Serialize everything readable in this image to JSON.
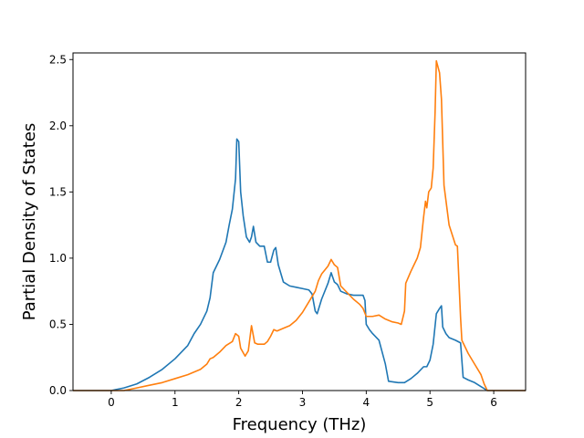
{
  "chart_data": {
    "type": "line",
    "xlabel": "Frequency (THz)",
    "ylabel": "Partial Density of States",
    "xlim": [
      -0.6,
      6.5
    ],
    "ylim": [
      0.0,
      2.55
    ],
    "x_ticks": [
      0,
      1,
      2,
      3,
      4,
      5,
      6
    ],
    "y_ticks": [
      0.0,
      0.5,
      1.0,
      1.5,
      2.0,
      2.5
    ],
    "x_tick_labels": [
      "0",
      "1",
      "2",
      "3",
      "4",
      "5",
      "6"
    ],
    "y_tick_labels": [
      "0.0",
      "0.5",
      "1.0",
      "1.5",
      "2.0",
      "2.5"
    ],
    "grid": false,
    "series": [
      {
        "color": "#1f77b4",
        "points": [
          [
            -0.6,
            0.0
          ],
          [
            0.0,
            0.0
          ],
          [
            0.2,
            0.02
          ],
          [
            0.4,
            0.05
          ],
          [
            0.6,
            0.1
          ],
          [
            0.8,
            0.16
          ],
          [
            1.0,
            0.24
          ],
          [
            1.2,
            0.34
          ],
          [
            1.3,
            0.43
          ],
          [
            1.4,
            0.5
          ],
          [
            1.5,
            0.6
          ],
          [
            1.55,
            0.7
          ],
          [
            1.6,
            0.89
          ],
          [
            1.7,
            0.99
          ],
          [
            1.8,
            1.12
          ],
          [
            1.85,
            1.25
          ],
          [
            1.9,
            1.37
          ],
          [
            1.95,
            1.6
          ],
          [
            1.97,
            1.9
          ],
          [
            2.0,
            1.88
          ],
          [
            2.03,
            1.5
          ],
          [
            2.07,
            1.32
          ],
          [
            2.12,
            1.16
          ],
          [
            2.17,
            1.12
          ],
          [
            2.2,
            1.16
          ],
          [
            2.23,
            1.24
          ],
          [
            2.27,
            1.12
          ],
          [
            2.33,
            1.09
          ],
          [
            2.4,
            1.09
          ],
          [
            2.45,
            0.97
          ],
          [
            2.5,
            0.97
          ],
          [
            2.55,
            1.06
          ],
          [
            2.58,
            1.08
          ],
          [
            2.62,
            0.95
          ],
          [
            2.7,
            0.82
          ],
          [
            2.8,
            0.79
          ],
          [
            2.9,
            0.78
          ],
          [
            3.0,
            0.77
          ],
          [
            3.1,
            0.76
          ],
          [
            3.15,
            0.73
          ],
          [
            3.2,
            0.6
          ],
          [
            3.23,
            0.58
          ],
          [
            3.3,
            0.69
          ],
          [
            3.4,
            0.81
          ],
          [
            3.45,
            0.89
          ],
          [
            3.5,
            0.82
          ],
          [
            3.55,
            0.8
          ],
          [
            3.6,
            0.75
          ],
          [
            3.7,
            0.73
          ],
          [
            3.8,
            0.72
          ],
          [
            3.9,
            0.72
          ],
          [
            3.95,
            0.72
          ],
          [
            3.98,
            0.68
          ],
          [
            4.0,
            0.5
          ],
          [
            4.05,
            0.46
          ],
          [
            4.1,
            0.43
          ],
          [
            4.2,
            0.38
          ],
          [
            4.3,
            0.2
          ],
          [
            4.35,
            0.07
          ],
          [
            4.5,
            0.06
          ],
          [
            4.6,
            0.06
          ],
          [
            4.7,
            0.09
          ],
          [
            4.8,
            0.13
          ],
          [
            4.9,
            0.18
          ],
          [
            4.95,
            0.18
          ],
          [
            5.0,
            0.23
          ],
          [
            5.05,
            0.35
          ],
          [
            5.1,
            0.58
          ],
          [
            5.15,
            0.62
          ],
          [
            5.18,
            0.64
          ],
          [
            5.2,
            0.48
          ],
          [
            5.25,
            0.43
          ],
          [
            5.3,
            0.4
          ],
          [
            5.4,
            0.38
          ],
          [
            5.48,
            0.36
          ],
          [
            5.52,
            0.1
          ],
          [
            5.6,
            0.08
          ],
          [
            5.7,
            0.06
          ],
          [
            5.8,
            0.03
          ],
          [
            5.9,
            0.0
          ],
          [
            6.5,
            0.0
          ]
        ]
      },
      {
        "color": "#ff7f0e",
        "points": [
          [
            -0.6,
            0.0
          ],
          [
            0.2,
            0.0
          ],
          [
            0.4,
            0.02
          ],
          [
            0.6,
            0.04
          ],
          [
            0.8,
            0.06
          ],
          [
            1.0,
            0.09
          ],
          [
            1.2,
            0.12
          ],
          [
            1.4,
            0.16
          ],
          [
            1.5,
            0.2
          ],
          [
            1.55,
            0.24
          ],
          [
            1.6,
            0.25
          ],
          [
            1.7,
            0.29
          ],
          [
            1.8,
            0.34
          ],
          [
            1.9,
            0.37
          ],
          [
            1.95,
            0.43
          ],
          [
            2.0,
            0.41
          ],
          [
            2.03,
            0.32
          ],
          [
            2.1,
            0.26
          ],
          [
            2.15,
            0.3
          ],
          [
            2.2,
            0.49
          ],
          [
            2.25,
            0.36
          ],
          [
            2.3,
            0.35
          ],
          [
            2.4,
            0.35
          ],
          [
            2.45,
            0.37
          ],
          [
            2.5,
            0.41
          ],
          [
            2.55,
            0.46
          ],
          [
            2.6,
            0.45
          ],
          [
            2.7,
            0.47
          ],
          [
            2.8,
            0.49
          ],
          [
            2.9,
            0.53
          ],
          [
            3.0,
            0.59
          ],
          [
            3.1,
            0.67
          ],
          [
            3.2,
            0.75
          ],
          [
            3.25,
            0.83
          ],
          [
            3.3,
            0.88
          ],
          [
            3.4,
            0.94
          ],
          [
            3.45,
            0.99
          ],
          [
            3.5,
            0.95
          ],
          [
            3.55,
            0.93
          ],
          [
            3.6,
            0.79
          ],
          [
            3.7,
            0.74
          ],
          [
            3.8,
            0.69
          ],
          [
            3.9,
            0.65
          ],
          [
            3.95,
            0.62
          ],
          [
            4.0,
            0.56
          ],
          [
            4.1,
            0.56
          ],
          [
            4.2,
            0.57
          ],
          [
            4.3,
            0.54
          ],
          [
            4.4,
            0.52
          ],
          [
            4.5,
            0.51
          ],
          [
            4.55,
            0.5
          ],
          [
            4.6,
            0.6
          ],
          [
            4.62,
            0.81
          ],
          [
            4.7,
            0.9
          ],
          [
            4.8,
            1.0
          ],
          [
            4.85,
            1.08
          ],
          [
            4.9,
            1.31
          ],
          [
            4.93,
            1.43
          ],
          [
            4.95,
            1.38
          ],
          [
            4.98,
            1.5
          ],
          [
            5.02,
            1.53
          ],
          [
            5.05,
            1.68
          ],
          [
            5.08,
            2.1
          ],
          [
            5.1,
            2.49
          ],
          [
            5.15,
            2.4
          ],
          [
            5.18,
            2.2
          ],
          [
            5.22,
            1.55
          ],
          [
            5.3,
            1.25
          ],
          [
            5.4,
            1.1
          ],
          [
            5.43,
            1.09
          ],
          [
            5.48,
            0.55
          ],
          [
            5.5,
            0.38
          ],
          [
            5.6,
            0.28
          ],
          [
            5.7,
            0.2
          ],
          [
            5.8,
            0.12
          ],
          [
            5.85,
            0.05
          ],
          [
            5.9,
            0.0
          ],
          [
            6.5,
            0.0
          ]
        ]
      }
    ]
  }
}
